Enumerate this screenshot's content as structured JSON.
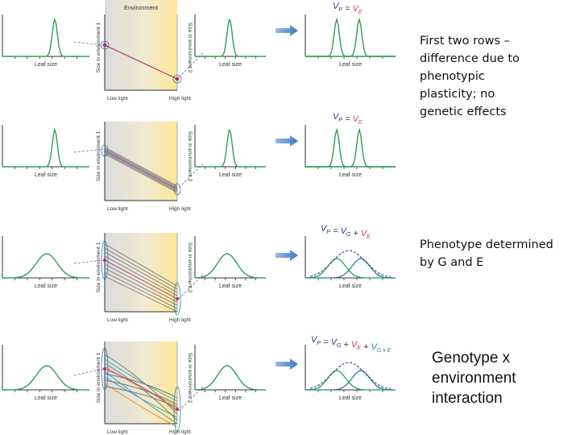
{
  "labels": {
    "environment": "Environment",
    "leaf_size": "Leaf size",
    "low_light": "Low light",
    "high_light": "High light",
    "size_env1": "Size in environment 1",
    "size_env2": "Size in environment 2"
  },
  "equations": {
    "row1": {
      "vp": "V",
      "vp_sub": "P",
      "eq": " = ",
      "ve": "V",
      "ve_sub": "E"
    },
    "row2": {
      "vp": "V",
      "vp_sub": "P",
      "eq": " = ",
      "ve": "V",
      "ve_sub": "E"
    },
    "row3": {
      "vp": "V",
      "vp_sub": "P",
      "eq": " = ",
      "vg": "V",
      "vg_sub": "G",
      "plus1": " + ",
      "ve": "V",
      "ve_sub": "E"
    },
    "row4": {
      "vp": "V",
      "vp_sub": "P",
      "eq": " = ",
      "vg": "V",
      "vg_sub": "G",
      "plus1": " + ",
      "ve": "V",
      "ve_sub": "E",
      "plus2": " + ",
      "vgxe": "V",
      "vgxe_sub": "G x E"
    }
  },
  "notes": {
    "phenotypic_plasticity": "First two rows – difference due to phenotypic plasticity; no genetic effects",
    "g_and_e": "Phenotype determined by G and E",
    "gxe": "Genotype x environment interaction"
  },
  "colors": {
    "curve_green": "#2e9d5b",
    "curve_blue": "#2a7fa8",
    "reaction_pink": "#b0306f",
    "reaction_gray": "#6f7480",
    "reaction_orange": "#e08a2c",
    "reaction_teal": "#3aa0b8",
    "arrow_blue": "#4f86c6",
    "axis": "#333333",
    "eq_vp": "#1a3f8f",
    "eq_ve": "#cc3a6e",
    "eq_vg": "#1a3f8f",
    "eq_vgxe": "#2a8a9a",
    "panel_left": "#d9d9d9",
    "panel_right": "#fbe59a"
  },
  "icons": {
    "arrow": "right-arrow-icon"
  }
}
